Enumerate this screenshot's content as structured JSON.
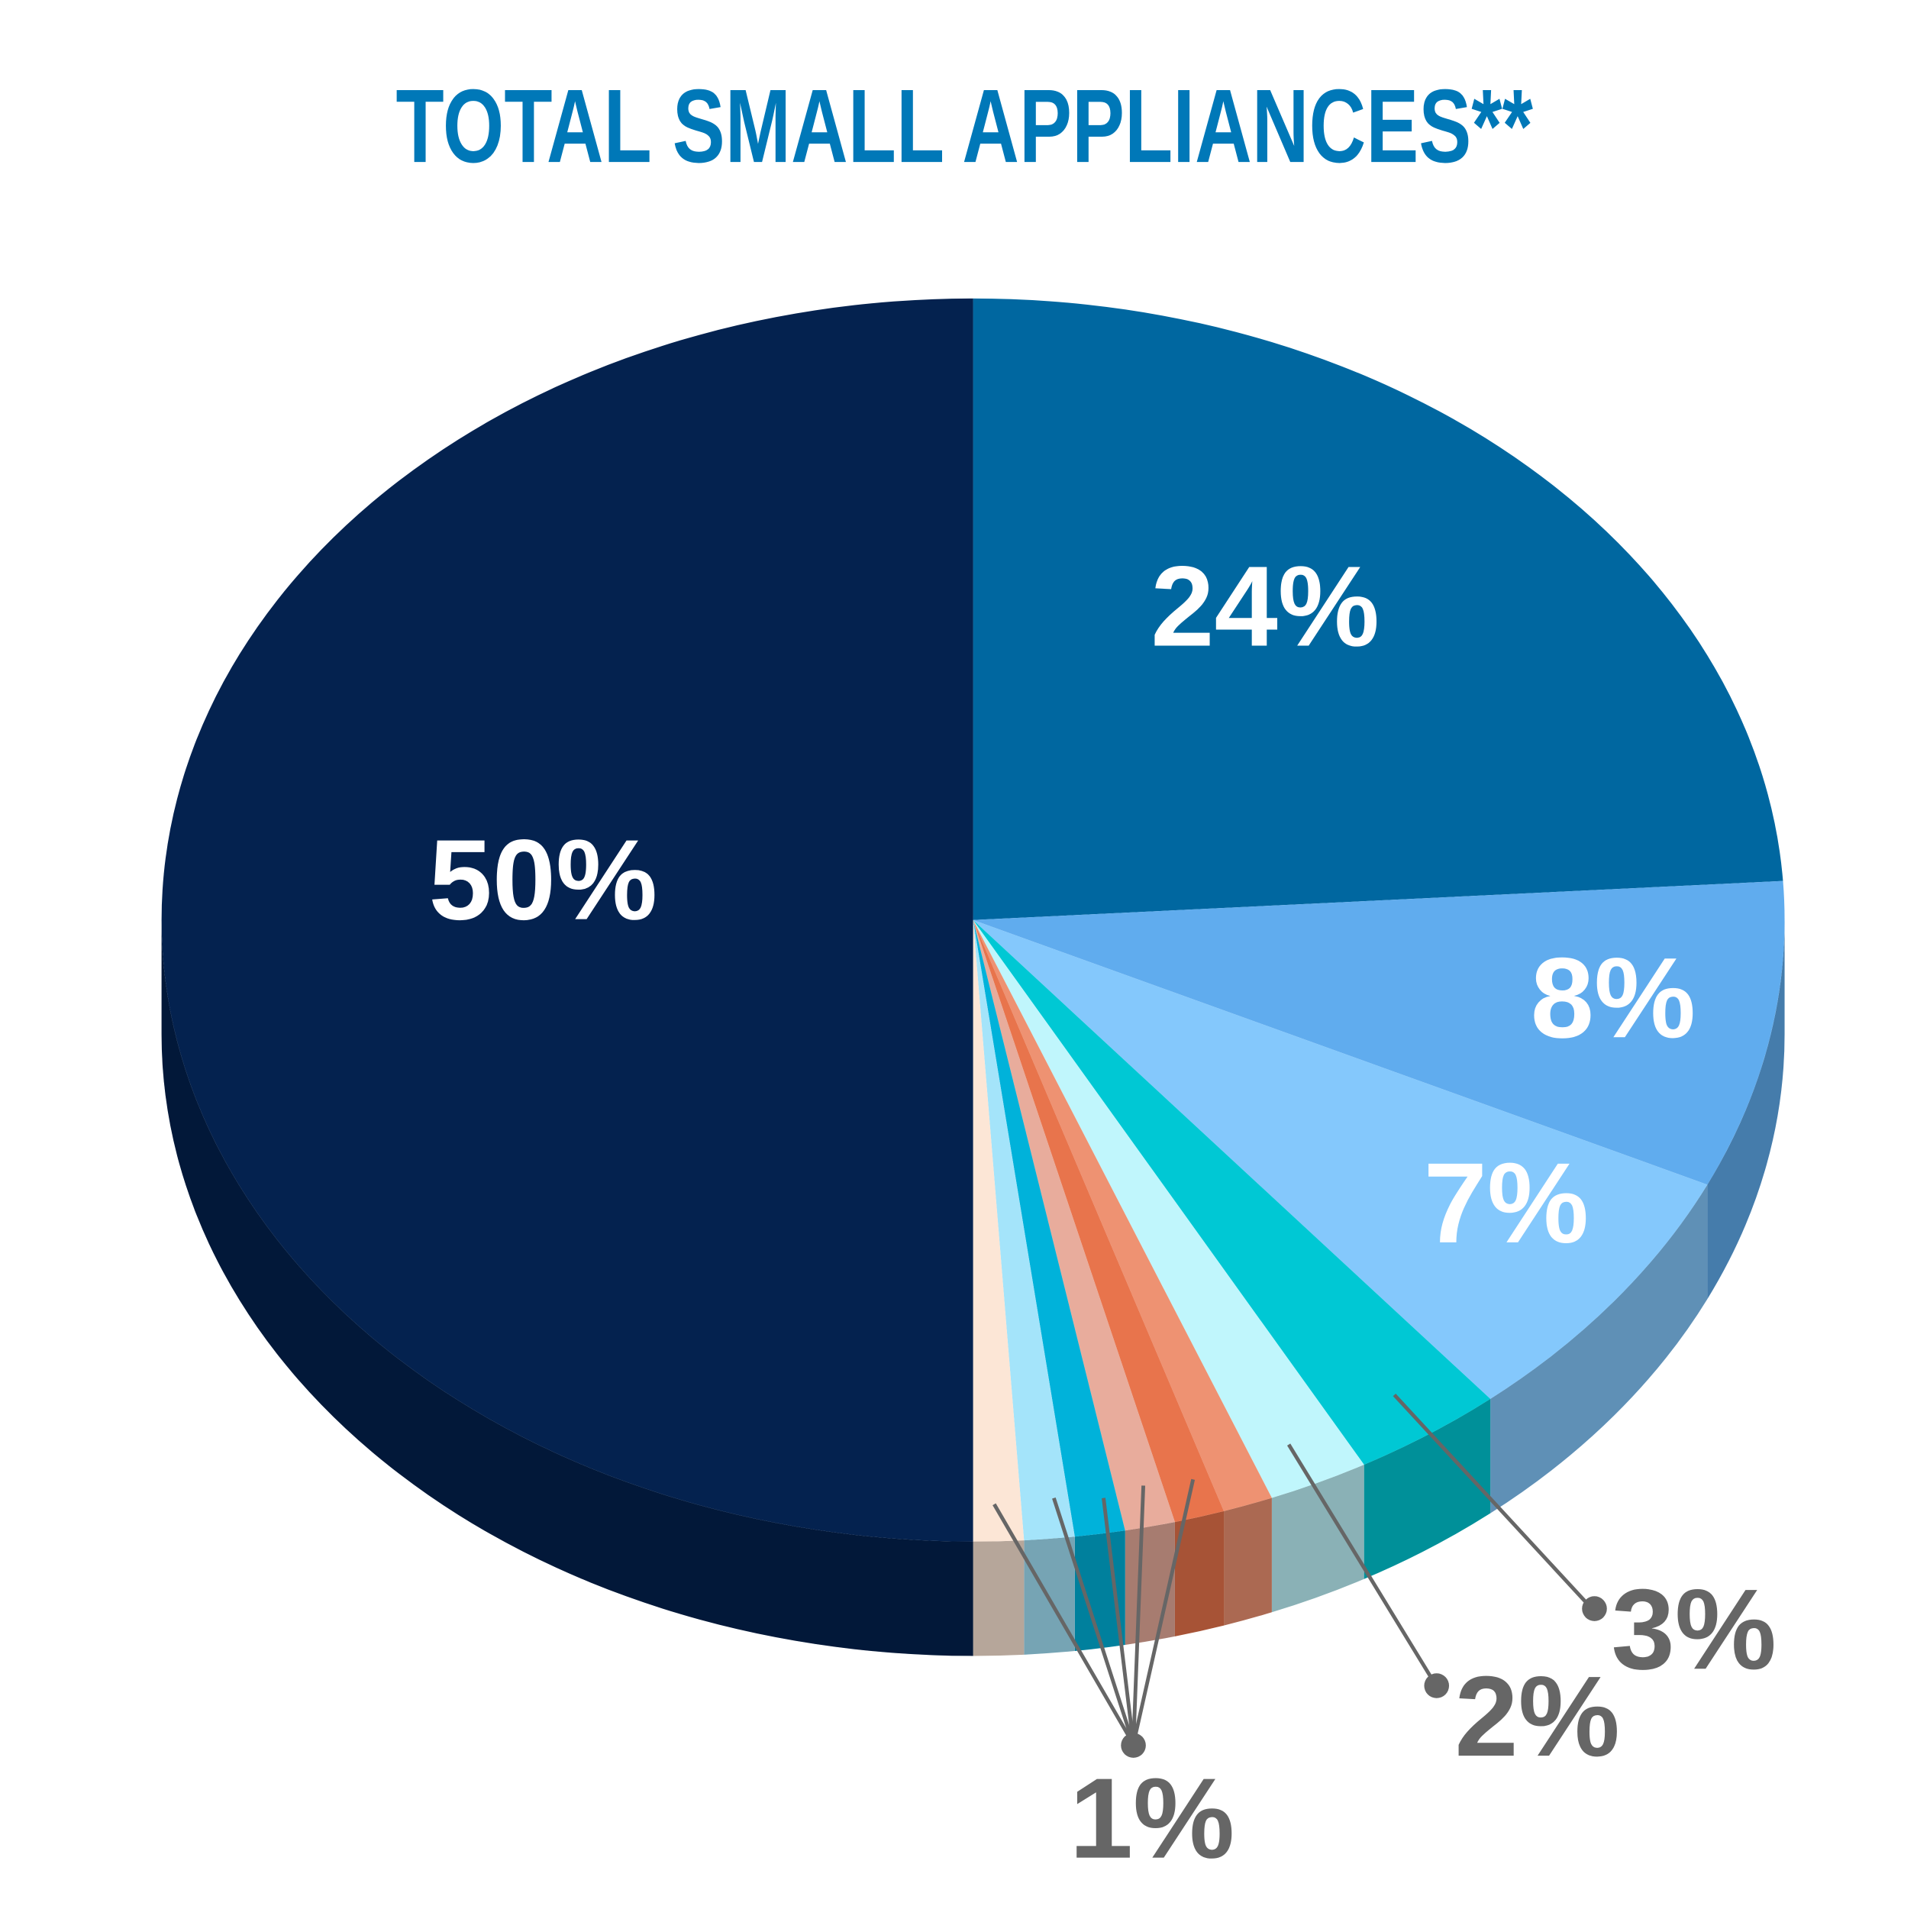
{
  "chart_data": {
    "type": "pie",
    "title": "TOTAL SMALL APPLIANCES**",
    "values": [
      24,
      8,
      7,
      3,
      2,
      1,
      1,
      1,
      1,
      1,
      1,
      50
    ],
    "value_labels": [
      "24%",
      "8%",
      "7%",
      "3%",
      "2%",
      "1%",
      null,
      null,
      null,
      null,
      null,
      "50%"
    ],
    "colors": [
      "#0067a0",
      "#60acee",
      "#84c8fc",
      "#00c8d4",
      "#c0f6fc",
      "#ee9272",
      "#e8744c",
      "#e8ac9c",
      "#00b2da",
      "#a4e4fa",
      "#fce6d6",
      "#04224f"
    ]
  }
}
